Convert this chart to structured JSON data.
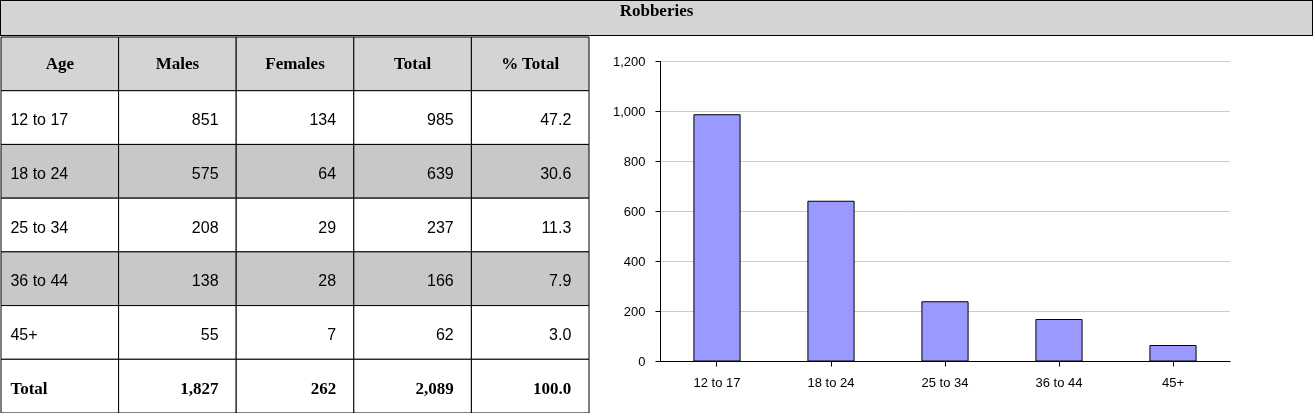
{
  "chart_data": [
    {
      "type": "other",
      "title": "Robberies",
      "xlabel": "Age",
      "categories": [
        "12 to 17",
        "18 to 24",
        "25 to 34",
        "36 to 44",
        "45+",
        "Total"
      ],
      "data_labels": true,
      "series": [
        {
          "name": "Males",
          "color": "#000000",
          "values": [
            851,
            575,
            208,
            138,
            55,
            1827
          ],
          "value_labels": [
            "851",
            "575",
            "208",
            "138",
            "55",
            "1,827"
          ]
        },
        {
          "name": "Females",
          "color": "#000000",
          "values": [
            134,
            64,
            29,
            28,
            7,
            262
          ]
        },
        {
          "name": "Total",
          "color": "#000000",
          "values": [
            985,
            639,
            237,
            166,
            62,
            2089
          ],
          "value_labels": [
            "985",
            "639",
            "237",
            "166",
            "62",
            "2,089"
          ]
        },
        {
          "name": "% Total",
          "color": "#000000",
          "values": [
            47.2,
            30.6,
            11.3,
            7.9,
            3.0,
            100.0
          ],
          "value_labels": [
            "47.2",
            "30.6",
            "11.3",
            "7.9",
            "3.0",
            "100.0"
          ]
        }
      ]
    },
    {
      "type": "bar",
      "categories": [
        "12 to 17",
        "18 to 24",
        "25 to 34",
        "36 to 44",
        "45+"
      ],
      "values": [
        985,
        639,
        237,
        166,
        62
      ],
      "color": "#9999ff",
      "ylim": [
        0,
        1200
      ],
      "yticks": [
        0,
        200,
        400,
        600,
        800,
        {
          "value": 1000,
          "label": "1,000"
        },
        {
          "value": 1200,
          "label": "1,200"
        }
      ],
      "grid": "y"
    }
  ]
}
